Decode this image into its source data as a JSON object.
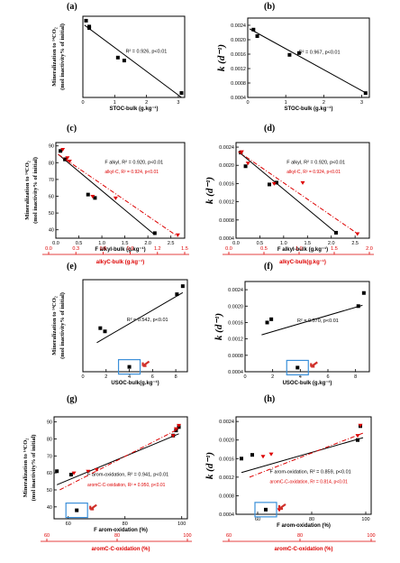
{
  "colors": {
    "black": "#000000",
    "red": "#dd0000",
    "blue_box": "#3a8fd9",
    "arrow": "#d0302a"
  },
  "chart_data": [
    {
      "id": "a",
      "type": "scatter",
      "label": "(a)",
      "xlabel": "STOC-bulk (g.kg⁻¹)",
      "ylabel": [
        "Mineralization to ¹⁴CO₂",
        "(mol inactivity% of initial)"
      ],
      "xlim": [
        0,
        3.2
      ],
      "ylim": [
        35,
        90
      ],
      "xticks": [
        "0",
        "1",
        "2",
        "3"
      ],
      "xtick_values": [
        0,
        1,
        2,
        3
      ],
      "yticks": [],
      "ytick_values": [],
      "series": [
        {
          "color": "#000000",
          "marker": "square",
          "x": [
            0.1,
            0.2,
            0.2,
            1.1,
            1.3,
            3.1
          ],
          "y": [
            87,
            83,
            82,
            62,
            60,
            38
          ],
          "fit": [
            [
              0.05,
              84
            ],
            [
              3.1,
              35
            ]
          ]
        }
      ],
      "annotations": [
        "R² = 0.926, p<0.01"
      ]
    },
    {
      "id": "b",
      "type": "scatter",
      "label": "(b)",
      "xlabel": "STOC-bulk (g.kg⁻¹)",
      "ylabel_h": "k (d⁻¹)",
      "xlim": [
        0,
        3.2
      ],
      "ylim": [
        0.0004,
        0.0026
      ],
      "xticks": [
        "0",
        "1",
        "2",
        "3"
      ],
      "xtick_values": [
        0,
        1,
        2,
        3
      ],
      "yticks": [
        "0.0004",
        "0.0008",
        "0.0012",
        "0.0016",
        "0.0020",
        "0.0024"
      ],
      "ytick_values": [
        0.0004,
        0.0008,
        0.0012,
        0.0016,
        0.002,
        0.0024
      ],
      "series": [
        {
          "color": "#000000",
          "marker": "square",
          "x": [
            0.15,
            0.25,
            1.1,
            1.35,
            3.1
          ],
          "y": [
            0.00228,
            0.0021,
            0.00158,
            0.00163,
            0.00052
          ],
          "fit": [
            [
              0.05,
              0.0023
            ],
            [
              3.1,
              0.00053
            ]
          ]
        }
      ],
      "annotations": [
        "R² = 0.967, p<0.01"
      ]
    },
    {
      "id": "c",
      "type": "scatter",
      "label": "(c)",
      "xlabel": "F alkyl-bulk (g.kg⁻¹)",
      "x2label": "alkyC-bulk (g.kg⁻¹)",
      "ylabel": [
        "Mineralization to ¹⁴CO₂",
        "(mol inactivity% of initial)"
      ],
      "xlim": [
        0,
        2.8
      ],
      "ylim": [
        35,
        92
      ],
      "xticks": [
        "0.0",
        "0.5",
        "1.0",
        "1.5",
        "2.0",
        "2.5"
      ],
      "xtick_values": [
        0,
        0.5,
        1,
        1.5,
        2,
        2.5
      ],
      "x2ticks": [
        "0.0",
        "0.3",
        "0.6",
        "0.9",
        "1.2",
        "1.5"
      ],
      "x2tick_values": [
        0,
        0.3,
        0.6,
        0.9,
        1.2,
        1.5
      ],
      "yticks": [
        "40",
        "50",
        "60",
        "70",
        "80",
        "90"
      ],
      "ytick_values": [
        40,
        50,
        60,
        70,
        80,
        90
      ],
      "series": [
        {
          "name": "F alkyl-bulk",
          "color": "#000000",
          "marker": "square",
          "x": [
            0.1,
            0.2,
            0.2,
            0.7,
            0.85,
            2.15
          ],
          "y": [
            87,
            82,
            82,
            61,
            59,
            38
          ],
          "fit": [
            [
              0.05,
              85
            ],
            [
              2.15,
              37
            ]
          ]
        },
        {
          "name": "alkyl-C",
          "color": "#dd0000",
          "marker": "circle",
          "dash": true,
          "x": [
            0.15,
            0.25,
            0.3,
            0.8,
            1.3,
            2.65
          ],
          "y": [
            88,
            83,
            81,
            60,
            59,
            37
          ],
          "fit": [
            [
              0.05,
              85
            ],
            [
              2.65,
              36
            ]
          ]
        }
      ],
      "annotations": [
        "F alkyl, R² = 0.920, p<0.01",
        "alkyl-C, R² = 0.924, p<0.01"
      ]
    },
    {
      "id": "d",
      "type": "scatter",
      "label": "(d)",
      "xlabel": "F alkyl-bulk (g.kg⁻¹)",
      "x2label": "alkyC-bulk(g.kg⁻¹)",
      "ylabel_h": "k (d⁻¹)",
      "xlim": [
        0,
        2.8
      ],
      "ylim": [
        0.0004,
        0.0025
      ],
      "xticks": [
        "0.0",
        "0.5",
        "1.0",
        "1.5",
        "2.0",
        "2.5"
      ],
      "xtick_values": [
        0,
        0.5,
        1,
        1.5,
        2,
        2.5
      ],
      "x2ticks": [
        "0.0",
        "0.5",
        "1.0",
        "1.5",
        "2.0"
      ],
      "x2tick_values": [
        0,
        0.5,
        1,
        1.5,
        2
      ],
      "yticks": [
        "0.0004",
        "0.0008",
        "0.0012",
        "0.0016",
        "0.0020",
        "0.0024"
      ],
      "ytick_values": [
        0.0004,
        0.0008,
        0.0012,
        0.0016,
        0.002,
        0.0024
      ],
      "series": [
        {
          "name": "F alkyl",
          "color": "#000000",
          "marker": "square",
          "x": [
            0.1,
            0.2,
            0.7,
            0.85,
            2.1
          ],
          "y": [
            0.00228,
            0.00198,
            0.00158,
            0.00162,
            0.00052
          ],
          "fit": [
            [
              0.05,
              0.0023
            ],
            [
              2.1,
              0.00052
            ]
          ]
        },
        {
          "name": "alkyl-C",
          "color": "#dd0000",
          "marker": "circle",
          "dash": true,
          "x": [
            0.12,
            0.25,
            0.8,
            1.4,
            2.55
          ],
          "y": [
            0.0023,
            0.00205,
            0.0016,
            0.00162,
            0.0005
          ],
          "fit": [
            [
              0.05,
              0.0023
            ],
            [
              2.55,
              0.0005
            ]
          ]
        }
      ],
      "annotations": [
        "F alkyl, R² = 0.920, p<0.01",
        "alkyl-C, R² = 0.924, p<0.01"
      ]
    },
    {
      "id": "e",
      "type": "scatter",
      "label": "(e)",
      "xlabel": "USOC-bulk(g.kg⁻¹)",
      "ylabel": [
        "Mineralization to ¹⁴CO₂",
        "(mol inactivity% of initial)"
      ],
      "xlim": [
        0,
        9
      ],
      "ylim": [
        35,
        92
      ],
      "xticks": [
        "0",
        "2",
        "4",
        "6",
        "8"
      ],
      "xtick_values": [
        0,
        2,
        4,
        6,
        8
      ],
      "yticks": [],
      "ytick_values": [],
      "series": [
        {
          "color": "#000000",
          "marker": "square",
          "x": [
            1.5,
            1.9,
            4.0,
            8.1,
            8.6
          ],
          "y": [
            62,
            60,
            38,
            83,
            88
          ],
          "fit": [
            [
              1.2,
              53
            ],
            [
              8.6,
              84
            ]
          ]
        }
      ],
      "annotations": [
        "R² = 0.542, p<0.01"
      ],
      "highlight": {
        "x": 4.0,
        "y": 38
      }
    },
    {
      "id": "f",
      "type": "scatter",
      "label": "(f)",
      "xlabel": "USOC-bulk (g.kg⁻¹)",
      "ylabel_h": "k (d⁻¹)",
      "xlim": [
        0,
        9
      ],
      "ylim": [
        0.0004,
        0.0026
      ],
      "xticks": [
        "0",
        "2",
        "4",
        "6",
        "8"
      ],
      "xtick_values": [
        0,
        2,
        4,
        6,
        8
      ],
      "yticks": [
        "0.0004",
        "0.0008",
        "0.0012",
        "0.0016",
        "0.0020",
        "0.0024"
      ],
      "ytick_values": [
        0.0004,
        0.0008,
        0.0012,
        0.0016,
        0.002,
        0.0024
      ],
      "series": [
        {
          "color": "#000000",
          "marker": "square",
          "x": [
            1.6,
            1.9,
            3.8,
            8.2,
            8.6
          ],
          "y": [
            0.0016,
            0.00168,
            0.0005,
            0.002,
            0.00232
          ],
          "fit": [
            [
              1.2,
              0.0013
            ],
            [
              8.5,
              0.00202
            ]
          ]
        }
      ],
      "annotations": [
        "R² = 0.570, p<0.01"
      ],
      "highlight": {
        "x": 3.8,
        "y": 0.0005
      }
    },
    {
      "id": "g",
      "type": "scatter",
      "label": "(g)",
      "xlabel": "F arom-oxidation (%)",
      "x2label": "aromC-C-oxidation (%)",
      "ylabel": [
        "Mineralization to ¹⁴CO₂",
        "(mol inactivity% of initial)"
      ],
      "xlim": [
        55,
        102
      ],
      "ylim": [
        33,
        93
      ],
      "xticks": [
        "60",
        "80",
        "100"
      ],
      "xtick_values": [
        60,
        80,
        100
      ],
      "x2ticks": [
        "60",
        "80",
        "100"
      ],
      "x2tick_values": [
        60,
        80,
        100
      ],
      "yticks": [
        "40",
        "50",
        "60",
        "70",
        "80",
        "90"
      ],
      "ytick_values": [
        40,
        50,
        60,
        70,
        80,
        90
      ],
      "series": [
        {
          "name": "F arom-oxidation",
          "color": "#000000",
          "marker": "square",
          "x": [
            56,
            61,
            63,
            97,
            98,
            99
          ],
          "y": [
            61,
            59,
            38,
            82,
            85,
            87
          ],
          "fit": [
            [
              56,
              53
            ],
            [
              99,
              83
            ]
          ]
        },
        {
          "name": "aromC-C-oxidation",
          "color": "#dd0000",
          "marker": "circle",
          "dash": true,
          "x": [
            62,
            67,
            70,
            97,
            98,
            99
          ],
          "y": [
            60,
            61,
            62,
            82,
            86,
            88
          ],
          "fit": [
            [
              57,
              50
            ],
            [
              99,
              86
            ]
          ]
        }
      ],
      "annotations": [
        "F arom-oxidation, R² = 0.941, p<0.01",
        "aromC-C-oxidation, R² = 0.950, p<0.01"
      ],
      "highlight": {
        "x": 63,
        "y": 38
      }
    },
    {
      "id": "h",
      "type": "scatter",
      "label": "(h)",
      "xlabel": "F arom-oxidation (%)",
      "x2label": "aromC-C-oxidation (%)",
      "ylabel_h": "k (d⁻¹)",
      "xlim": [
        52,
        102
      ],
      "ylim": [
        0.0004,
        0.0025
      ],
      "xticks": [
        "60",
        "80",
        "100"
      ],
      "xtick_values": [
        60,
        80,
        100
      ],
      "x2ticks": [
        "60",
        "80",
        "100"
      ],
      "x2tick_values": [
        60,
        80,
        100
      ],
      "yticks": [
        "0.0004",
        "0.0008",
        "0.0012",
        "0.0016",
        "0.0020",
        "0.0024"
      ],
      "ytick_values": [
        0.0004,
        0.0008,
        0.0012,
        0.0016,
        0.002,
        0.0024
      ],
      "series": [
        {
          "name": "F arom-oxidation",
          "color": "#000000",
          "marker": "square",
          "x": [
            54,
            58,
            63,
            97,
            98
          ],
          "y": [
            0.0016,
            0.00168,
            0.0005,
            0.002,
            0.0023
          ],
          "fit": [
            [
              54,
              0.0013
            ],
            [
              99,
              0.00205
            ]
          ]
        },
        {
          "name": "aromC-C-oxidation",
          "color": "#dd0000",
          "marker": "circle",
          "dash": true,
          "x": [
            62,
            65,
            68,
            97,
            98
          ],
          "y": [
            0.00165,
            0.0017,
            0.0005,
            0.0021,
            0.00232
          ],
          "fit": [
            [
              57,
              0.0012
            ],
            [
              99,
              0.00215
            ]
          ]
        }
      ],
      "annotations": [
        "F arom-oxidation, R² = 0.859, p<0.01",
        "aromC-C-oxidation, R² = 0.814, p<0.01"
      ],
      "highlight": {
        "x": 63,
        "y": 0.0005
      }
    }
  ]
}
